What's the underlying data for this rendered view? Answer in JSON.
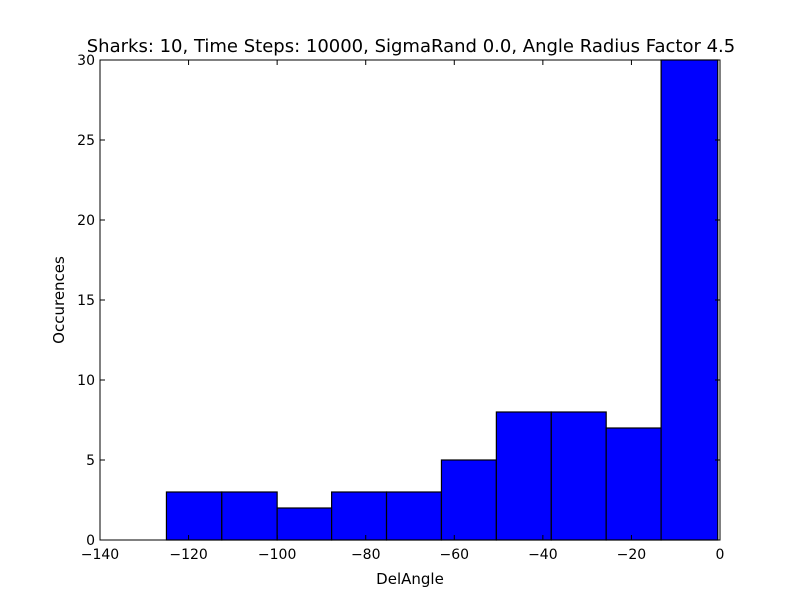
{
  "chart_data": {
    "type": "bar",
    "title": "Sharks: 10, Time Steps: 10000, SigmaRand 0.0, Angle Radius Factor 4.5",
    "xlabel": "DelAngle",
    "ylabel": "Occurences",
    "xlim": [
      -140,
      0
    ],
    "ylim": [
      0,
      30
    ],
    "xticks": [
      -140,
      -120,
      -100,
      -80,
      -60,
      -40,
      -20,
      0
    ],
    "xtick_labels": [
      "−140",
      "−120",
      "−100",
      "−80",
      "−60",
      "−40",
      "−20",
      "0"
    ],
    "yticks": [
      0,
      5,
      10,
      15,
      20,
      25,
      30
    ],
    "ytick_labels": [
      "0",
      "5",
      "10",
      "15",
      "20",
      "25",
      "30"
    ],
    "bins": [
      {
        "x0": -125,
        "x1": -112.5,
        "value": 3
      },
      {
        "x0": -112.5,
        "x1": -100,
        "value": 3
      },
      {
        "x0": -100,
        "x1": -87.7,
        "value": 2
      },
      {
        "x0": -87.7,
        "x1": -75.3,
        "value": 3
      },
      {
        "x0": -75.3,
        "x1": -62.9,
        "value": 3
      },
      {
        "x0": -62.9,
        "x1": -50.5,
        "value": 5
      },
      {
        "x0": -50.5,
        "x1": -38.1,
        "value": 8
      },
      {
        "x0": -38.1,
        "x1": -25.7,
        "value": 8
      },
      {
        "x0": -25.7,
        "x1": -13.3,
        "value": 7
      },
      {
        "x0": -13.3,
        "x1": -0.5,
        "value": 30
      }
    ],
    "bar_color": "#0000ff",
    "edge_color": "#000000",
    "grid": false
  }
}
